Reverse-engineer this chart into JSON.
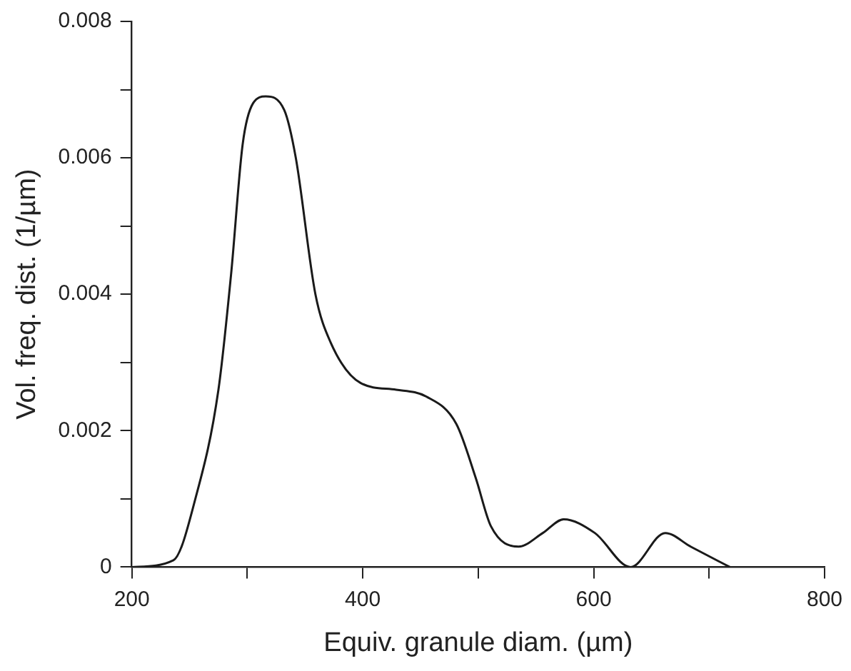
{
  "chart_data": {
    "type": "line",
    "xlabel": "Equiv. granule diam. (µm)",
    "ylabel": "Vol. freq. dist. (1/µm)",
    "series": [
      {
        "color": "#1a1a1a",
        "x": [
          200,
          236,
          255,
          275,
          286,
          296,
          305,
          316,
          332,
          342,
          359,
          372,
          398,
          429,
          455,
          481,
          498,
          511,
          535,
          556,
          574,
          601,
          632,
          662,
          684,
          718
        ],
        "values": [
          0,
          0.0001,
          0.001,
          0.0026,
          0.0043,
          0.0062,
          0.0068,
          0.0069,
          0.0067,
          0.006,
          0.004,
          0.0033,
          0.0027,
          0.0026,
          0.0025,
          0.0021,
          0.0013,
          0.0006,
          0.0003,
          0.0005,
          0.0007,
          0.0005,
          0,
          0.0005,
          0.0003,
          0
        ]
      }
    ],
    "xlim": [
      200,
      800
    ],
    "xticks": [
      200,
      {
        "value": 300,
        "label": null
      },
      400,
      {
        "value": 500,
        "label": null
      },
      600,
      {
        "value": 700,
        "label": null
      },
      800
    ],
    "ylim": [
      0,
      0.008
    ],
    "yticks": [
      0,
      {
        "value": 0.001,
        "label": null
      },
      0.002,
      {
        "value": 0.003,
        "label": null
      },
      0.004,
      {
        "value": 0.005,
        "label": null
      },
      0.006,
      {
        "value": 0.007,
        "label": null
      },
      0.008
    ],
    "grid": false,
    "legend": false,
    "marker": "none",
    "line_style": "solid"
  }
}
